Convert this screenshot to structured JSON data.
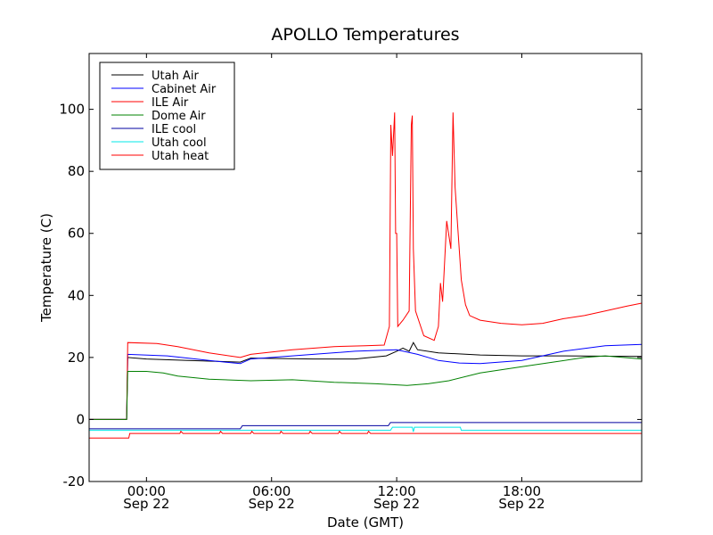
{
  "chart_data": {
    "type": "line",
    "title": "APOLLO Temperatures",
    "xlabel": "Date (GMT)",
    "ylabel": "Temperature (C)",
    "xunit": "hours from Sep 22 00:00 GMT",
    "xlim": [
      -2.75,
      23.75
    ],
    "ylim": [
      -20,
      118
    ],
    "legend_position": "top-left",
    "grid": false,
    "x_ticks": [
      {
        "value": 0,
        "label": "00:00",
        "sublabel": "Sep 22"
      },
      {
        "value": 6,
        "label": "06:00",
        "sublabel": "Sep 22"
      },
      {
        "value": 12,
        "label": "12:00",
        "sublabel": "Sep 22"
      },
      {
        "value": 18,
        "label": "18:00",
        "sublabel": "Sep 22"
      }
    ],
    "y_ticks": [
      {
        "value": -20,
        "label": "-20"
      },
      {
        "value": 0,
        "label": "0"
      },
      {
        "value": 20,
        "label": "20"
      },
      {
        "value": 40,
        "label": "40"
      },
      {
        "value": 60,
        "label": "60"
      },
      {
        "value": 80,
        "label": "80"
      },
      {
        "value": 100,
        "label": "100"
      }
    ],
    "series": [
      {
        "name": "Utah Air",
        "color": "#000000",
        "points": [
          [
            -2.75,
            0
          ],
          [
            -0.95,
            0
          ],
          [
            -0.9,
            20
          ],
          [
            0,
            19.5
          ],
          [
            2,
            19
          ],
          [
            4.5,
            18.5
          ],
          [
            5,
            19.8
          ],
          [
            8,
            19.5
          ],
          [
            10,
            19.5
          ],
          [
            11.5,
            20.5
          ],
          [
            12,
            22
          ],
          [
            12.3,
            23
          ],
          [
            12.6,
            22
          ],
          [
            12.8,
            24.8
          ],
          [
            13,
            22.5
          ],
          [
            14,
            21.5
          ],
          [
            16,
            20.8
          ],
          [
            18,
            20.5
          ],
          [
            20,
            20.5
          ],
          [
            23.75,
            20.3
          ]
        ]
      },
      {
        "name": "Cabinet Air",
        "color": "#0000ff",
        "points": [
          [
            -2.75,
            0
          ],
          [
            -0.95,
            0
          ],
          [
            -0.9,
            21
          ],
          [
            1,
            20.5
          ],
          [
            3,
            19
          ],
          [
            4.5,
            18
          ],
          [
            5,
            19.5
          ],
          [
            8,
            21
          ],
          [
            10,
            22
          ],
          [
            12,
            22.5
          ],
          [
            13,
            21
          ],
          [
            14,
            19
          ],
          [
            15,
            18.2
          ],
          [
            16,
            18
          ],
          [
            18,
            19
          ],
          [
            20,
            22
          ],
          [
            22,
            23.8
          ],
          [
            23.75,
            24.2
          ]
        ]
      },
      {
        "name": "ILE Air",
        "color": "#ff0000",
        "points": [
          [
            -2.75,
            0
          ],
          [
            -0.95,
            0
          ],
          [
            -0.9,
            24.8
          ],
          [
            0.5,
            24.5
          ],
          [
            1.5,
            23.5
          ],
          [
            3,
            21.5
          ],
          [
            4.5,
            20
          ],
          [
            5,
            21
          ],
          [
            7,
            22.5
          ],
          [
            9,
            23.5
          ],
          [
            10.5,
            23.8
          ],
          [
            11.4,
            24
          ],
          [
            11.65,
            30
          ],
          [
            11.72,
            95
          ],
          [
            11.8,
            85
          ],
          [
            11.9,
            99
          ],
          [
            11.95,
            60
          ],
          [
            12,
            60
          ],
          [
            12.05,
            30
          ],
          [
            12.3,
            32
          ],
          [
            12.6,
            35
          ],
          [
            12.7,
            95
          ],
          [
            12.75,
            98
          ],
          [
            12.8,
            55
          ],
          [
            12.9,
            35
          ],
          [
            13.3,
            27
          ],
          [
            13.8,
            25.5
          ],
          [
            14,
            30
          ],
          [
            14.1,
            44
          ],
          [
            14.2,
            38
          ],
          [
            14.4,
            64
          ],
          [
            14.6,
            55
          ],
          [
            14.7,
            99
          ],
          [
            14.8,
            75
          ],
          [
            14.9,
            65
          ],
          [
            15.1,
            45
          ],
          [
            15.3,
            37
          ],
          [
            15.5,
            33.5
          ],
          [
            16,
            32
          ],
          [
            17,
            31
          ],
          [
            18,
            30.5
          ],
          [
            19,
            31
          ],
          [
            20,
            32.5
          ],
          [
            21,
            33.5
          ],
          [
            22,
            35
          ],
          [
            23,
            36.5
          ],
          [
            23.75,
            37.5
          ]
        ]
      },
      {
        "name": "Dome Air",
        "color": "#008000",
        "points": [
          [
            -2.75,
            0
          ],
          [
            -0.95,
            0
          ],
          [
            -0.9,
            15.5
          ],
          [
            0,
            15.5
          ],
          [
            0.8,
            15
          ],
          [
            1.5,
            14
          ],
          [
            3,
            13
          ],
          [
            5,
            12.5
          ],
          [
            7,
            12.8
          ],
          [
            9,
            12
          ],
          [
            11,
            11.5
          ],
          [
            12.5,
            11
          ],
          [
            13.5,
            11.5
          ],
          [
            14.5,
            12.5
          ],
          [
            16,
            15
          ],
          [
            18,
            17
          ],
          [
            19.5,
            18.5
          ],
          [
            21,
            20
          ],
          [
            22,
            20.5
          ],
          [
            23.75,
            19.5
          ]
        ]
      },
      {
        "name": "ILE cool",
        "color": "#0000a0",
        "points": [
          [
            -2.75,
            -3
          ],
          [
            4.5,
            -3
          ],
          [
            4.6,
            -2
          ],
          [
            11.6,
            -2
          ],
          [
            11.7,
            -1
          ],
          [
            23.75,
            -1
          ]
        ]
      },
      {
        "name": "Utah cool",
        "color": "#00e8e8",
        "points": [
          [
            -2.75,
            -3.5
          ],
          [
            11.7,
            -3.5
          ],
          [
            11.8,
            -2.5
          ],
          [
            12.75,
            -2.5
          ],
          [
            12.8,
            -4
          ],
          [
            12.85,
            -2.5
          ],
          [
            15.05,
            -2.5
          ],
          [
            15.1,
            -3.5
          ],
          [
            23.75,
            -3.5
          ]
        ]
      },
      {
        "name": "Utah heat",
        "color": "#ff0000",
        "points": [
          [
            -2.75,
            -6
          ],
          [
            -0.85,
            -6
          ],
          [
            -0.8,
            -4.5
          ],
          [
            1.6,
            -4.5
          ],
          [
            1.65,
            -3.8
          ],
          [
            1.75,
            -4.5
          ],
          [
            3.5,
            -4.5
          ],
          [
            3.55,
            -3.8
          ],
          [
            3.65,
            -4.5
          ],
          [
            5,
            -4.5
          ],
          [
            5.05,
            -3.8
          ],
          [
            5.15,
            -4.5
          ],
          [
            6.4,
            -4.5
          ],
          [
            6.45,
            -3.8
          ],
          [
            6.55,
            -4.5
          ],
          [
            7.8,
            -4.5
          ],
          [
            7.85,
            -3.8
          ],
          [
            7.95,
            -4.5
          ],
          [
            9.2,
            -4.5
          ],
          [
            9.25,
            -3.8
          ],
          [
            9.35,
            -4.5
          ],
          [
            10.6,
            -4.5
          ],
          [
            10.65,
            -3.8
          ],
          [
            10.75,
            -4.5
          ],
          [
            23.75,
            -4.5
          ]
        ]
      }
    ]
  }
}
